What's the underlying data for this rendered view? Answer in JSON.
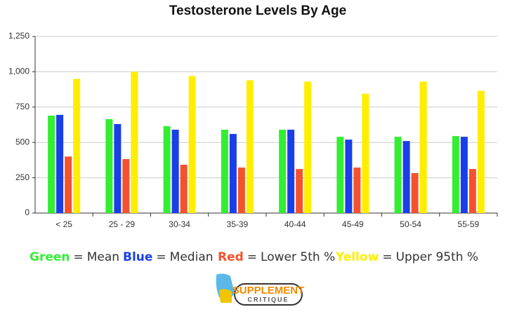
{
  "chart_data": {
    "type": "bar",
    "title": "Testosterone Levels By Age",
    "categories": [
      "< 25",
      "25 - 29",
      "30-34",
      "35-39",
      "40-44",
      "45-49",
      "50-54",
      "55-59"
    ],
    "series": [
      {
        "name": "Mean",
        "color_word": "Green",
        "color": "#33ee33",
        "values": [
          690,
          665,
          615,
          590,
          590,
          540,
          540,
          545
        ]
      },
      {
        "name": "Median",
        "color_word": "Blue",
        "color": "#1a3fe8",
        "values": [
          695,
          630,
          590,
          560,
          590,
          520,
          510,
          540
        ]
      },
      {
        "name": "Lower 5th %",
        "color_word": "Red",
        "color": "#f4522d",
        "values": [
          400,
          382,
          342,
          322,
          312,
          322,
          283,
          312
        ]
      },
      {
        "name": "Upper 95th %",
        "color_word": "Yellow",
        "color": "#ffee00",
        "values": [
          950,
          1000,
          970,
          940,
          930,
          845,
          930,
          865
        ]
      }
    ],
    "legend_separator": "=",
    "ylim": [
      0,
      1250
    ],
    "yticks": [
      0,
      250,
      500,
      750,
      {
        "value": 1000,
        "label": "1,000"
      },
      {
        "value": 1250,
        "label": "1,250"
      }
    ],
    "grid": true
  },
  "logo": {
    "line1": "SUPPLEMENT",
    "line2": "CRITIQUE"
  }
}
